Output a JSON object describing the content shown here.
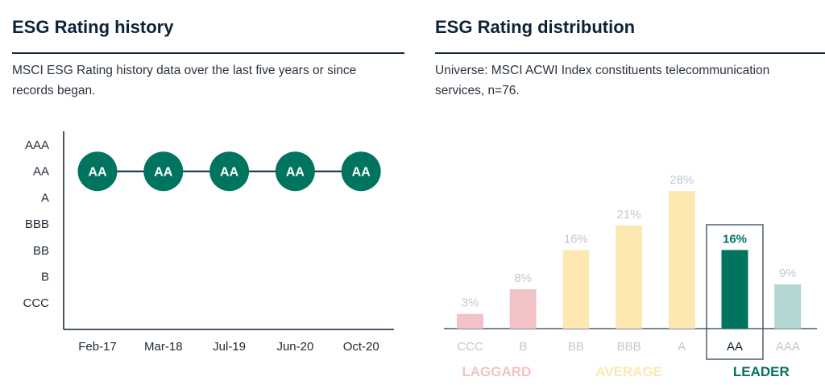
{
  "left": {
    "title": "ESG Rating history",
    "description_line1": "MSCI ESG Rating history data over the last five years or since",
    "description_line2": "records began."
  },
  "right": {
    "title": "ESG Rating distribution",
    "description_line1": "Universe: MSCI ACWI Index constituents telecommunication",
    "description_line2": "services, n=76."
  },
  "colors": {
    "brand_dark": "#0c2238",
    "leader": "#00745f",
    "leader_light": "#b2d6d2",
    "average": "#fde8b2",
    "laggard": "#f2c3c6",
    "muted_label": "#c2c8cf"
  },
  "chart_data": [
    {
      "type": "line",
      "title": "ESG Rating history",
      "x": [
        "Feb-17",
        "Mar-18",
        "Jul-19",
        "Jun-20",
        "Oct-20"
      ],
      "y_categories": [
        "CCC",
        "B",
        "BB",
        "BBB",
        "A",
        "AA",
        "AAA"
      ],
      "series": [
        {
          "name": "ESG Rating",
          "values": [
            "AA",
            "AA",
            "AA",
            "AA",
            "AA"
          ]
        }
      ],
      "xlabel": "",
      "ylabel": "",
      "grid": false
    },
    {
      "type": "bar",
      "title": "ESG Rating distribution",
      "categories": [
        "CCC",
        "B",
        "BB",
        "BBB",
        "A",
        "AA",
        "AAA"
      ],
      "values": [
        3,
        8,
        16,
        21,
        28,
        16,
        9
      ],
      "value_labels": [
        "3%",
        "8%",
        "16%",
        "21%",
        "28%",
        "16%",
        "9%"
      ],
      "unit": "%",
      "highlighted": "AA",
      "groups": [
        {
          "label": "LAGGARD",
          "categories": [
            "CCC",
            "B"
          ]
        },
        {
          "label": "AVERAGE",
          "categories": [
            "BB",
            "BBB",
            "A"
          ]
        },
        {
          "label": "LEADER",
          "categories": [
            "AA",
            "AAA"
          ]
        }
      ],
      "ylim": [
        0,
        30
      ],
      "grid": false
    }
  ]
}
